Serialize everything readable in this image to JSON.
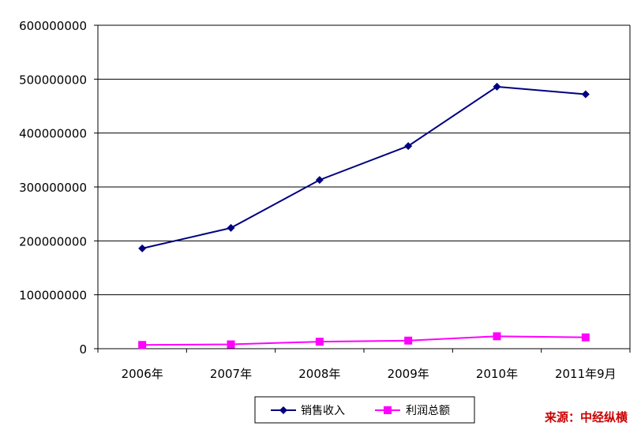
{
  "chart_data": {
    "type": "line",
    "title": "",
    "xlabel": "",
    "ylabel": "",
    "categories": [
      "2006年",
      "2007年",
      "2008年",
      "2009年",
      "2010年",
      "2011年9月"
    ],
    "ylim": [
      0,
      600000000
    ],
    "yticks": [
      "0",
      "100000000",
      "200000000",
      "300000000",
      "400000000",
      "500000000",
      "600000000"
    ],
    "grid": "horizontal",
    "legend_position": "bottom",
    "series": [
      {
        "name": "销售收入",
        "color": "#000080",
        "marker": "diamond",
        "values": [
          186000000,
          224000000,
          313000000,
          376000000,
          486000000,
          472000000
        ]
      },
      {
        "name": "利润总额",
        "color": "#ff00ff",
        "marker": "square",
        "values": [
          7000000,
          8000000,
          13000000,
          15000000,
          23000000,
          21000000
        ]
      }
    ]
  },
  "source_note": "来源：中经纵横"
}
